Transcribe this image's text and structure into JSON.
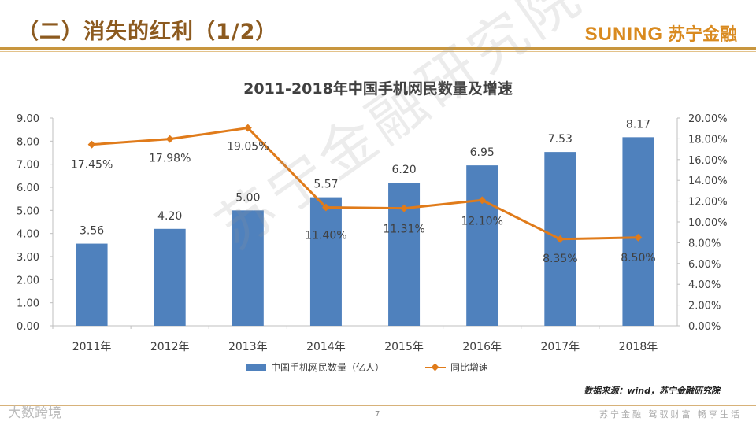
{
  "header": {
    "title": "（二）消失的红利（1/2）",
    "logo_en": "SUNING",
    "logo_cn": "苏宁金融"
  },
  "watermark": "苏宁金融研究院",
  "chart_data": {
    "type": "bar+line",
    "title": "2011-2018年中国手机网民数量及增速",
    "categories": [
      "2011年",
      "2012年",
      "2013年",
      "2014年",
      "2015年",
      "2016年",
      "2017年",
      "2018年"
    ],
    "series": [
      {
        "name": "中国手机网民数量（亿人）",
        "type": "bar",
        "axis": "left",
        "values": [
          3.56,
          4.2,
          5.0,
          5.57,
          6.2,
          6.95,
          7.53,
          8.17
        ],
        "labels": [
          "3.56",
          "4.20",
          "5.00",
          "5.57",
          "6.20",
          "6.95",
          "7.53",
          "8.17"
        ],
        "color": "#4f81bd"
      },
      {
        "name": "同比增速",
        "type": "line",
        "axis": "right",
        "values": [
          17.45,
          17.98,
          19.05,
          11.4,
          11.31,
          12.1,
          8.35,
          8.5
        ],
        "labels": [
          "17.45%",
          "17.98%",
          "19.05%",
          "11.40%",
          "11.31%",
          "12.10%",
          "8.35%",
          "8.50%"
        ],
        "color": "#e07b1a"
      }
    ],
    "ylim_left": [
      0,
      9
    ],
    "yticks_left": [
      "0.00",
      "1.00",
      "2.00",
      "3.00",
      "4.00",
      "5.00",
      "6.00",
      "7.00",
      "8.00",
      "9.00"
    ],
    "ylim_right": [
      0,
      20
    ],
    "yticks_right": [
      "0.00%",
      "2.00%",
      "4.00%",
      "6.00%",
      "8.00%",
      "10.00%",
      "12.00%",
      "14.00%",
      "16.00%",
      "18.00%",
      "20.00%"
    ],
    "legend_position": "bottom"
  },
  "source": "数据来源：wind，苏宁金融研究院",
  "footer": {
    "page_number": "7",
    "brand": "大数跨境",
    "slogan": "苏宁金融  驾驭财富  畅享生活"
  }
}
